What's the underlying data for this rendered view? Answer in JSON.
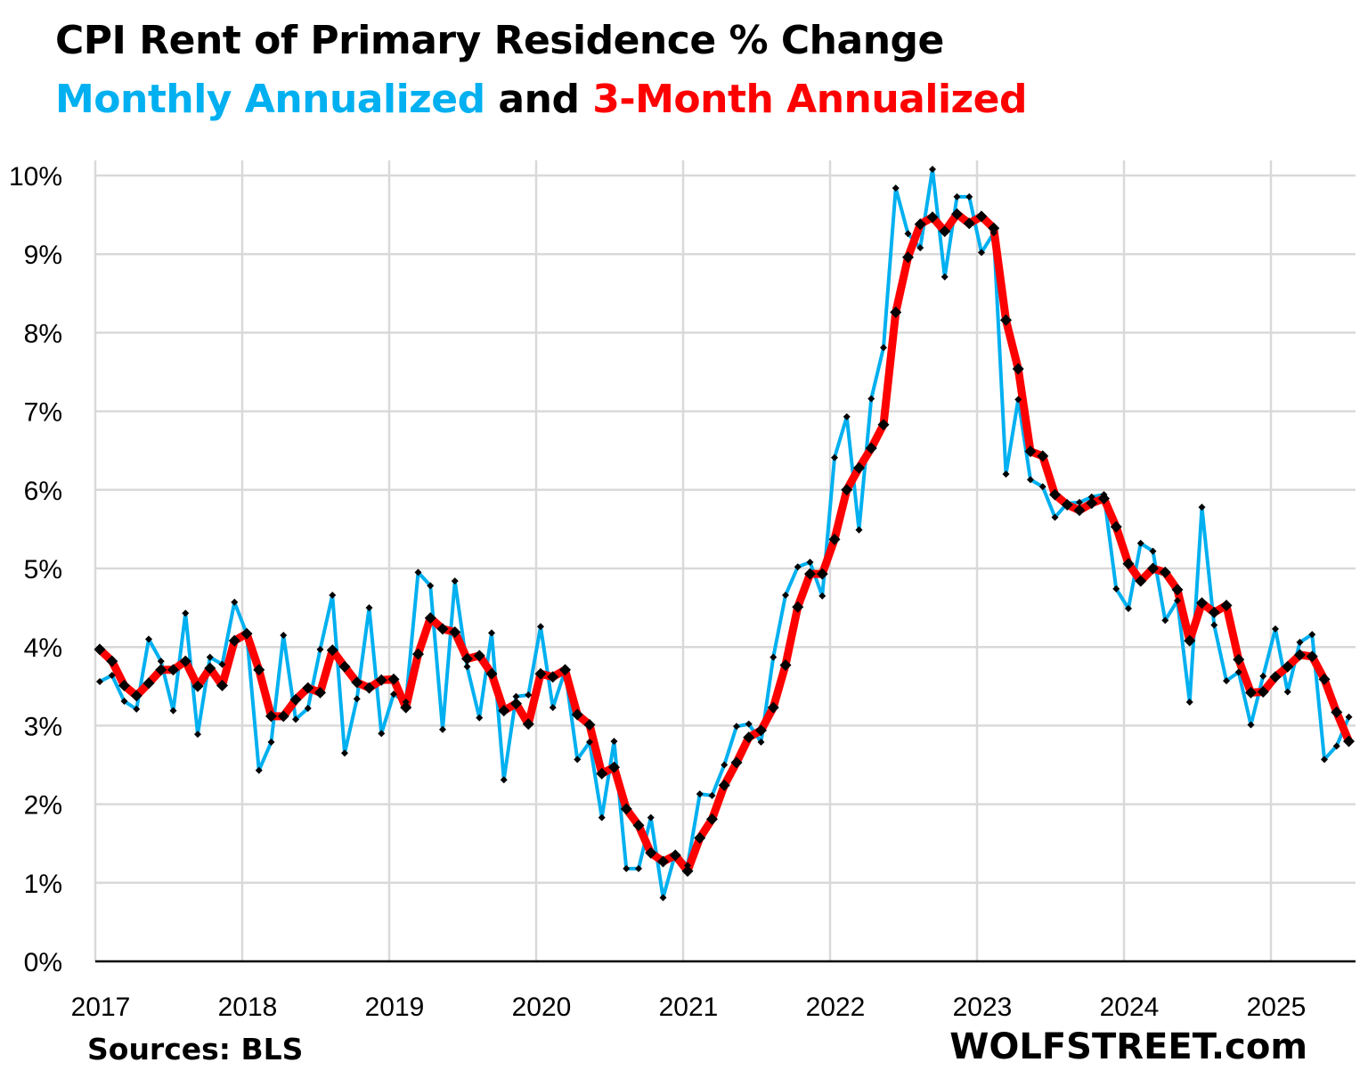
{
  "chart_data": {
    "type": "line",
    "title": "CPI Rent of Primary Residence % Change",
    "subtitle": {
      "part1": "Monthly Annualized",
      "part2": " and ",
      "part3": "3-Month Annualized"
    },
    "xlabel": "",
    "ylabel": "",
    "ylim": [
      0,
      10
    ],
    "y_ticks": [
      "0%",
      "1%",
      "2%",
      "3%",
      "4%",
      "5%",
      "6%",
      "7%",
      "8%",
      "9%",
      "10%"
    ],
    "x_ticks": [
      "2017",
      "2018",
      "2019",
      "2020",
      "2021",
      "2022",
      "2023",
      "2024",
      "2025"
    ],
    "grid": true,
    "legend": "none (series identified by colored subtitle)",
    "x": [
      "2017-01",
      "2017-02",
      "2017-03",
      "2017-04",
      "2017-05",
      "2017-06",
      "2017-07",
      "2017-08",
      "2017-09",
      "2017-10",
      "2017-11",
      "2017-12",
      "2018-01",
      "2018-02",
      "2018-03",
      "2018-04",
      "2018-05",
      "2018-06",
      "2018-07",
      "2018-08",
      "2018-09",
      "2018-10",
      "2018-11",
      "2018-12",
      "2019-01",
      "2019-02",
      "2019-03",
      "2019-04",
      "2019-05",
      "2019-06",
      "2019-07",
      "2019-08",
      "2019-09",
      "2019-10",
      "2019-11",
      "2019-12",
      "2020-01",
      "2020-02",
      "2020-03",
      "2020-04",
      "2020-05",
      "2020-06",
      "2020-07",
      "2020-08",
      "2020-09",
      "2020-10",
      "2020-11",
      "2020-12",
      "2021-01",
      "2021-02",
      "2021-03",
      "2021-04",
      "2021-05",
      "2021-06",
      "2021-07",
      "2021-08",
      "2021-09",
      "2021-10",
      "2021-11",
      "2021-12",
      "2022-01",
      "2022-02",
      "2022-03",
      "2022-04",
      "2022-05",
      "2022-06",
      "2022-07",
      "2022-08",
      "2022-09",
      "2022-10",
      "2022-11",
      "2022-12",
      "2023-01",
      "2023-02",
      "2023-03",
      "2023-04",
      "2023-05",
      "2023-06",
      "2023-07",
      "2023-08",
      "2023-09",
      "2023-10",
      "2023-11",
      "2023-12",
      "2024-01",
      "2024-02",
      "2024-03",
      "2024-04",
      "2024-05",
      "2024-06",
      "2024-07",
      "2024-08",
      "2024-09",
      "2024-10",
      "2024-11",
      "2024-12",
      "2025-01",
      "2025-02",
      "2025-03",
      "2025-04",
      "2025-05",
      "2025-06",
      "2025-07"
    ],
    "series": [
      {
        "name": "Monthly Annualized",
        "color": "#00B0F0",
        "values": [
          3.56,
          3.64,
          3.31,
          3.21,
          4.1,
          3.82,
          3.19,
          4.43,
          2.89,
          3.87,
          3.78,
          4.57,
          4.17,
          2.43,
          2.79,
          4.15,
          3.08,
          3.22,
          3.97,
          4.66,
          2.65,
          3.34,
          4.5,
          2.9,
          3.4,
          3.3,
          4.95,
          4.78,
          2.95,
          4.84,
          3.75,
          3.1,
          4.18,
          2.31,
          3.37,
          3.39,
          4.26,
          3.23,
          3.7,
          2.57,
          2.79,
          1.83,
          2.8,
          1.18,
          1.18,
          1.83,
          0.81,
          1.37,
          1.22,
          2.13,
          2.11,
          2.5,
          2.99,
          3.02,
          2.79,
          3.87,
          4.66,
          5.02,
          5.08,
          4.65,
          6.41,
          6.93,
          5.49,
          7.16,
          7.81,
          9.84,
          9.26,
          9.08,
          10.08,
          8.71,
          9.73,
          9.73,
          9.02,
          9.27,
          6.2,
          7.15,
          6.13,
          6.04,
          5.65,
          5.83,
          5.84,
          5.91,
          5.94,
          4.74,
          4.49,
          5.32,
          5.22,
          4.34,
          4.59,
          3.3,
          5.78,
          4.28,
          3.57,
          3.68,
          3.01,
          3.63,
          4.23,
          3.43,
          4.06,
          4.16,
          2.57,
          2.74,
          3.11
        ]
      },
      {
        "name": "3-Month Annualized",
        "color": "#FF0000",
        "values": [
          3.97,
          3.82,
          3.51,
          3.38,
          3.54,
          3.71,
          3.71,
          3.82,
          3.5,
          3.73,
          3.51,
          4.08,
          4.17,
          3.71,
          3.12,
          3.12,
          3.33,
          3.48,
          3.42,
          3.96,
          3.75,
          3.55,
          3.48,
          3.58,
          3.59,
          3.23,
          3.91,
          4.37,
          4.23,
          4.19,
          3.85,
          3.89,
          3.66,
          3.19,
          3.28,
          3.02,
          3.66,
          3.62,
          3.71,
          3.14,
          3.01,
          2.39,
          2.47,
          1.94,
          1.73,
          1.38,
          1.27,
          1.35,
          1.15,
          1.57,
          1.81,
          2.24,
          2.53,
          2.85,
          2.94,
          3.23,
          3.77,
          4.51,
          4.93,
          4.93,
          5.37,
          6.0,
          6.28,
          6.53,
          6.83,
          8.26,
          8.96,
          9.38,
          9.47,
          9.29,
          9.51,
          9.39,
          9.48,
          9.33,
          8.16,
          7.54,
          6.49,
          6.43,
          5.94,
          5.81,
          5.74,
          5.83,
          5.89,
          5.53,
          5.06,
          4.84,
          5.0,
          4.95,
          4.73,
          4.08,
          4.56,
          4.44,
          4.53,
          3.84,
          3.42,
          3.43,
          3.62,
          3.75,
          3.9,
          3.88,
          3.59,
          3.17,
          2.8
        ]
      }
    ]
  },
  "footer": {
    "source": "Sources: BLS",
    "brand": "WOLFSTREET.com"
  }
}
